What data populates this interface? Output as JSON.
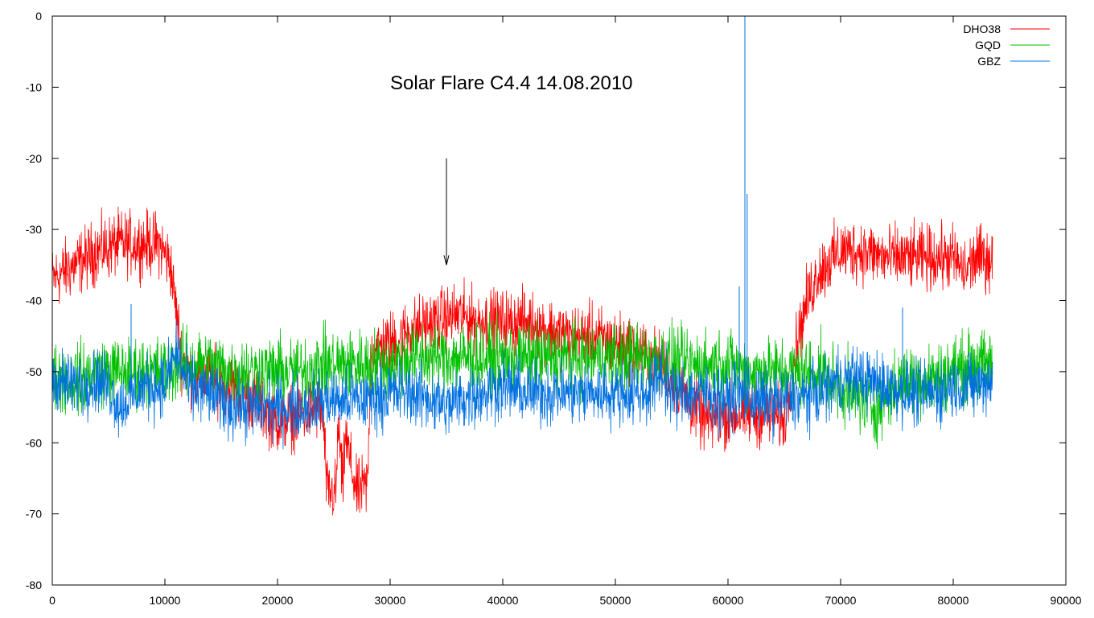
{
  "chart_data": {
    "type": "line",
    "title": "",
    "xlabel": "",
    "ylabel": "",
    "xlim": [
      0,
      90000
    ],
    "ylim": [
      -80,
      0
    ],
    "x_ticks": [
      "0",
      "10000",
      "20000",
      "30000",
      "40000",
      "50000",
      "60000",
      "70000",
      "80000",
      "90000"
    ],
    "y_ticks": [
      "0",
      "-10",
      "-20",
      "-30",
      "-40",
      "-50",
      "-60",
      "-70",
      "-80"
    ],
    "x_tick_values": [
      0,
      10000,
      20000,
      30000,
      40000,
      50000,
      60000,
      70000,
      80000,
      90000
    ],
    "y_tick_values": [
      0,
      -10,
      -20,
      -30,
      -40,
      -50,
      -60,
      -70,
      -80
    ],
    "grid": false,
    "legend_position": "top-right",
    "annotation": {
      "text": "Solar Flare C4.4 14.08.2010",
      "arrow_x": 35000,
      "arrow_y_from": -20,
      "arrow_y_to": -35
    },
    "series": [
      {
        "name": "DHO38",
        "color": "#ff0000",
        "noise": 2.2,
        "x": [
          0,
          2000,
          4000,
          6000,
          8000,
          9500,
          10500,
          11500,
          12500,
          14000,
          16000,
          18000,
          20000,
          22000,
          24000,
          24400,
          25200,
          25400,
          25800,
          26000,
          27000,
          28000,
          28300,
          30000,
          32000,
          34000,
          36000,
          38000,
          40000,
          42000,
          44000,
          46000,
          48000,
          50000,
          52000,
          54000,
          56000,
          58000,
          60000,
          62000,
          64000,
          65000,
          65500,
          66000,
          67000,
          68000,
          70000,
          72000,
          74000,
          76000,
          78000,
          80000,
          81000,
          82000,
          83500
        ],
        "y": [
          -37,
          -35,
          -33,
          -32,
          -32,
          -32,
          -35,
          -48,
          -51,
          -51,
          -52,
          -54,
          -57,
          -56,
          -55,
          -67,
          -67,
          -57,
          -67,
          -59,
          -67,
          -66,
          -47,
          -46,
          -44,
          -43,
          -42,
          -43,
          -43,
          -43,
          -44,
          -45,
          -45,
          -46,
          -47,
          -49,
          -53,
          -57,
          -56,
          -56,
          -56,
          -57,
          -52,
          -47,
          -40,
          -36,
          -33,
          -33,
          -34,
          -34,
          -34,
          -34,
          -36,
          -34,
          -34
        ]
      },
      {
        "name": "GQD",
        "color": "#00c000",
        "noise": 2.4,
        "x": [
          0,
          2000,
          4000,
          6000,
          8000,
          10000,
          11000,
          12000,
          14000,
          16000,
          18000,
          20000,
          22000,
          24000,
          26000,
          28000,
          30000,
          32000,
          34000,
          36000,
          38000,
          40000,
          42000,
          44000,
          46000,
          48000,
          50000,
          52000,
          54000,
          56000,
          58000,
          60000,
          62000,
          64000,
          66000,
          68000,
          70000,
          71000,
          72000,
          73000,
          74000,
          75000,
          76000,
          78000,
          80000,
          82000,
          83500
        ],
        "y": [
          -51,
          -51,
          -50,
          -50,
          -50,
          -50,
          -49,
          -49,
          -49,
          -50,
          -50,
          -50,
          -50,
          -49,
          -49,
          -49,
          -49,
          -48,
          -48,
          -48,
          -48,
          -48,
          -48,
          -48,
          -48,
          -48,
          -48,
          -48,
          -48,
          -49,
          -49,
          -49,
          -50,
          -50,
          -50,
          -50,
          -52,
          -53,
          -54,
          -55,
          -54,
          -52,
          -51,
          -51,
          -50,
          -49,
          -49
        ]
      },
      {
        "name": "GBZ",
        "color": "#0070e0",
        "noise": 2.2,
        "x": [
          0,
          2000,
          4000,
          5000,
          6000,
          8000,
          10000,
          11000,
          12000,
          14000,
          16000,
          18000,
          20000,
          22000,
          24000,
          26000,
          28000,
          30000,
          32000,
          34000,
          35000,
          36000,
          38000,
          40000,
          42000,
          44000,
          46000,
          48000,
          50000,
          52000,
          53000,
          54000,
          55000,
          56000,
          58000,
          60000,
          61000,
          62000,
          64000,
          66000,
          68000,
          70000,
          72000,
          74000,
          76000,
          78000,
          80000,
          82000,
          83500
        ],
        "y": [
          -51,
          -52,
          -51,
          -52,
          -55,
          -52,
          -52,
          -47,
          -52,
          -53,
          -55,
          -55,
          -55,
          -55,
          -54,
          -54,
          -54,
          -53,
          -53,
          -54,
          -55,
          -54,
          -53,
          -52,
          -53,
          -53,
          -53,
          -53,
          -53,
          -53,
          -53,
          -50,
          -53,
          -53,
          -53,
          -54,
          -53,
          -54,
          -54,
          -54,
          -53,
          -51,
          -51,
          -52,
          -53,
          -53,
          -52,
          -52,
          -51
        ],
        "spikes": [
          {
            "x": 61000,
            "y": -38
          },
          {
            "x": 61500,
            "y": 0
          },
          {
            "x": 61700,
            "y": -25
          },
          {
            "x": 75500,
            "y": -41
          },
          {
            "x": 0,
            "y": -40
          },
          {
            "x": 7000,
            "y": -40.5
          }
        ]
      }
    ]
  }
}
